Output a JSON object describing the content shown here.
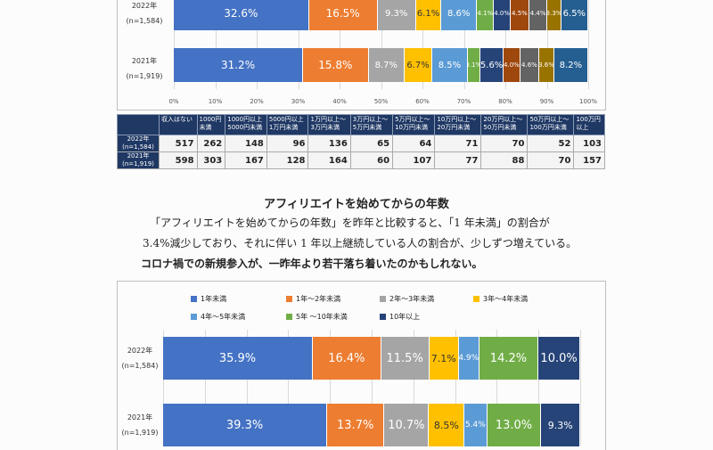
{
  "chart_data": [
    {
      "type": "bar",
      "orientation": "horizontal",
      "stacked": true,
      "categories": [
        "2022年\n(n=1,584)",
        "2021年\n(n=1,919)"
      ],
      "series": [
        {
          "name": "収入はない",
          "values": [
            32.6,
            31.2
          ],
          "labels": [
            "32.6%",
            "31.2%"
          ]
        },
        {
          "name": "1000円未満",
          "values": [
            16.5,
            15.8
          ],
          "labels": [
            "16.5%",
            "15.8%"
          ]
        },
        {
          "name": "1000円以上5000円未満",
          "values": [
            9.3,
            8.7
          ],
          "labels": [
            "9.3%",
            "8.7%"
          ]
        },
        {
          "name": "5000円以上1万円未満",
          "values": [
            6.1,
            6.7
          ],
          "labels": [
            "6.1%",
            "6.7%"
          ]
        },
        {
          "name": "1万円以上3万円未満",
          "values": [
            8.6,
            8.5
          ],
          "labels": [
            "8.6%",
            "8.5%"
          ]
        },
        {
          "name": "3万円以上5万円未満",
          "values": [
            4.1,
            3.1
          ],
          "labels": [
            "4.1%",
            "3.1%"
          ]
        },
        {
          "name": "5万円以上10万円未満",
          "values": [
            4.0,
            5.6
          ],
          "labels": [
            "4.0%",
            "5.6%"
          ]
        },
        {
          "name": "10万円以上20万円未満",
          "values": [
            4.5,
            4.0
          ],
          "labels": [
            "4.5%",
            "4.0%"
          ]
        },
        {
          "name": "20万円以上50万円未満",
          "values": [
            4.4,
            4.6
          ],
          "labels": [
            "4.4%",
            "4.6%"
          ]
        },
        {
          "name": "50万円以上100万円未満",
          "values": [
            3.3,
            3.6
          ],
          "labels": [
            "3.3%",
            "3.6%"
          ]
        },
        {
          "name": "100万円以上",
          "values": [
            6.5,
            8.2
          ],
          "labels": [
            "6.5%",
            "8.2%"
          ]
        }
      ],
      "colors": [
        "#4472c4",
        "#ed7d31",
        "#a5a5a5",
        "#ffc000",
        "#5b9bd5",
        "#70ad47",
        "#264478",
        "#9e480e",
        "#636363",
        "#997300",
        "#255e91"
      ],
      "xlim": [
        0,
        100
      ],
      "xticks": [
        "0%",
        "10%",
        "20%",
        "30%",
        "40%",
        "50%",
        "60%",
        "70%",
        "80%",
        "90%",
        "100%"
      ]
    },
    {
      "type": "bar",
      "orientation": "horizontal",
      "stacked": true,
      "categories": [
        "2022年\n(n=1,584)",
        "2021年\n(n=1,919)"
      ],
      "series": [
        {
          "name": "1年未満",
          "values": [
            35.9,
            39.3
          ],
          "labels": [
            "35.9%",
            "39.3%"
          ]
        },
        {
          "name": "1年～2年未満",
          "values": [
            16.4,
            13.7
          ],
          "labels": [
            "16.4%",
            "13.7%"
          ]
        },
        {
          "name": "2年～3年未満",
          "values": [
            11.5,
            10.7
          ],
          "labels": [
            "11.5%",
            "10.7%"
          ]
        },
        {
          "name": "3年～4年未満",
          "values": [
            7.1,
            8.5
          ],
          "labels": [
            "7.1%",
            "8.5%"
          ]
        },
        {
          "name": "4年～5年未満",
          "values": [
            4.9,
            5.4
          ],
          "labels": [
            "4.9%",
            "5.4%"
          ]
        },
        {
          "name": "5年 ～10年未満",
          "values": [
            14.2,
            13.0
          ],
          "labels": [
            "14.2%",
            "13.0%"
          ]
        },
        {
          "name": "10年以上",
          "values": [
            10.0,
            9.3
          ],
          "labels": [
            "10.0%",
            "9.3%"
          ]
        }
      ],
      "colors": [
        "#4472c4",
        "#ed7d31",
        "#a5a5a5",
        "#ffc000",
        "#5b9bd5",
        "#70ad47",
        "#264478"
      ],
      "xlim": [
        0,
        100
      ],
      "legend": "top"
    }
  ],
  "count_table": {
    "headers": [
      "収入はない",
      "1000円\n未満",
      "1000円以上\n5000円未満",
      "5000円以上\n1万円未満",
      "1万円以上～\n3万円未満",
      "3万円以上～\n5万円未満",
      "5万円以上～\n10万円未満",
      "10万円以上～\n20万円未満",
      "20万円以上～\n50万円未満",
      "50万円以上～\n100万円未満",
      "100万円\n以上"
    ],
    "rows": [
      {
        "label": "2022年\n(n=1,584)",
        "values": [
          "517",
          "262",
          "148",
          "96",
          "136",
          "65",
          "64",
          "71",
          "70",
          "52",
          "103"
        ]
      },
      {
        "label": "2021年\n(n=1,919)",
        "values": [
          "598",
          "303",
          "167",
          "128",
          "164",
          "60",
          "107",
          "77",
          "88",
          "70",
          "157"
        ]
      }
    ]
  },
  "section": {
    "title": "アフィリエイトを始めてからの年数",
    "line1": "「アフィリエイトを始めてからの年数」を昨年と比較すると、「1 年未満」の割合が",
    "line2": "3.4%減少しており、それに伴い 1 年以上継続している人の割合が、少しずつ増えている。",
    "line3": "コロナ禍での新規参入が、一昨年より若干落ち着いたのかもしれない。"
  }
}
